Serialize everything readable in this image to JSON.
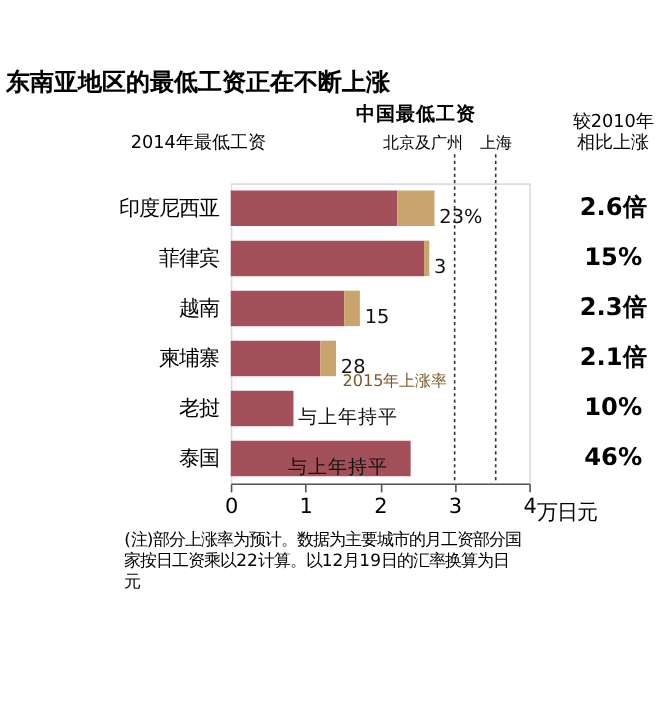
{
  "chart_data": {
    "type": "bar",
    "orientation": "horizontal",
    "stacked": true,
    "title": "东南亚地区的最低工资正在不断上涨",
    "categories": [
      "印度尼西亚",
      "菲律宾",
      "越南",
      "柬埔寨",
      "老挝",
      "泰国"
    ],
    "series": [
      {
        "name": "2014年最低工资",
        "color": "#a4505a",
        "values": [
          2.23,
          2.59,
          1.52,
          1.2,
          0.84,
          2.41
        ]
      },
      {
        "name": "2015年上涨率",
        "color": "#c9a46c",
        "values": [
          0.5,
          0.07,
          0.21,
          0.21,
          null,
          null
        ]
      }
    ],
    "xlim": [
      0,
      4
    ],
    "xticks": [
      0,
      1,
      2,
      3,
      4
    ],
    "xlabel": "万日元",
    "ref_lines": [
      {
        "axis": "x",
        "value": 3,
        "label": "北京及广州",
        "line_style": "dotted",
        "color": "#333333"
      },
      {
        "axis": "x",
        "value": 3.55,
        "label": "上海",
        "line_style": "dotted",
        "color": "#333333"
      }
    ],
    "annotations": [
      "中国最低工资",
      "较2010年相比上涨",
      "2.6倍",
      "15%",
      "2.3倍",
      "2.1倍",
      "10%",
      "46%",
      {
        "text": "23%",
        "x": 2.73,
        "y": "印度尼西亚"
      },
      {
        "text": "3",
        "x": 2.66,
        "y": "菲律宾"
      },
      {
        "text": "15",
        "x": 1.73,
        "y": "越南"
      },
      {
        "text": "28",
        "x": 1.41,
        "y": "柬埔寨"
      },
      {
        "text": "与上年持平",
        "x": 0.84,
        "y": "老挝"
      },
      {
        "text": "与上年持平",
        "x": 0.7,
        "y": "泰国"
      },
      "(注)部分上涨率为预计。数据为主要城市的月工资部分国家按日工资乘以22计算。以12月19日的汇率换算为日元"
    ],
    "grid": false
  }
}
